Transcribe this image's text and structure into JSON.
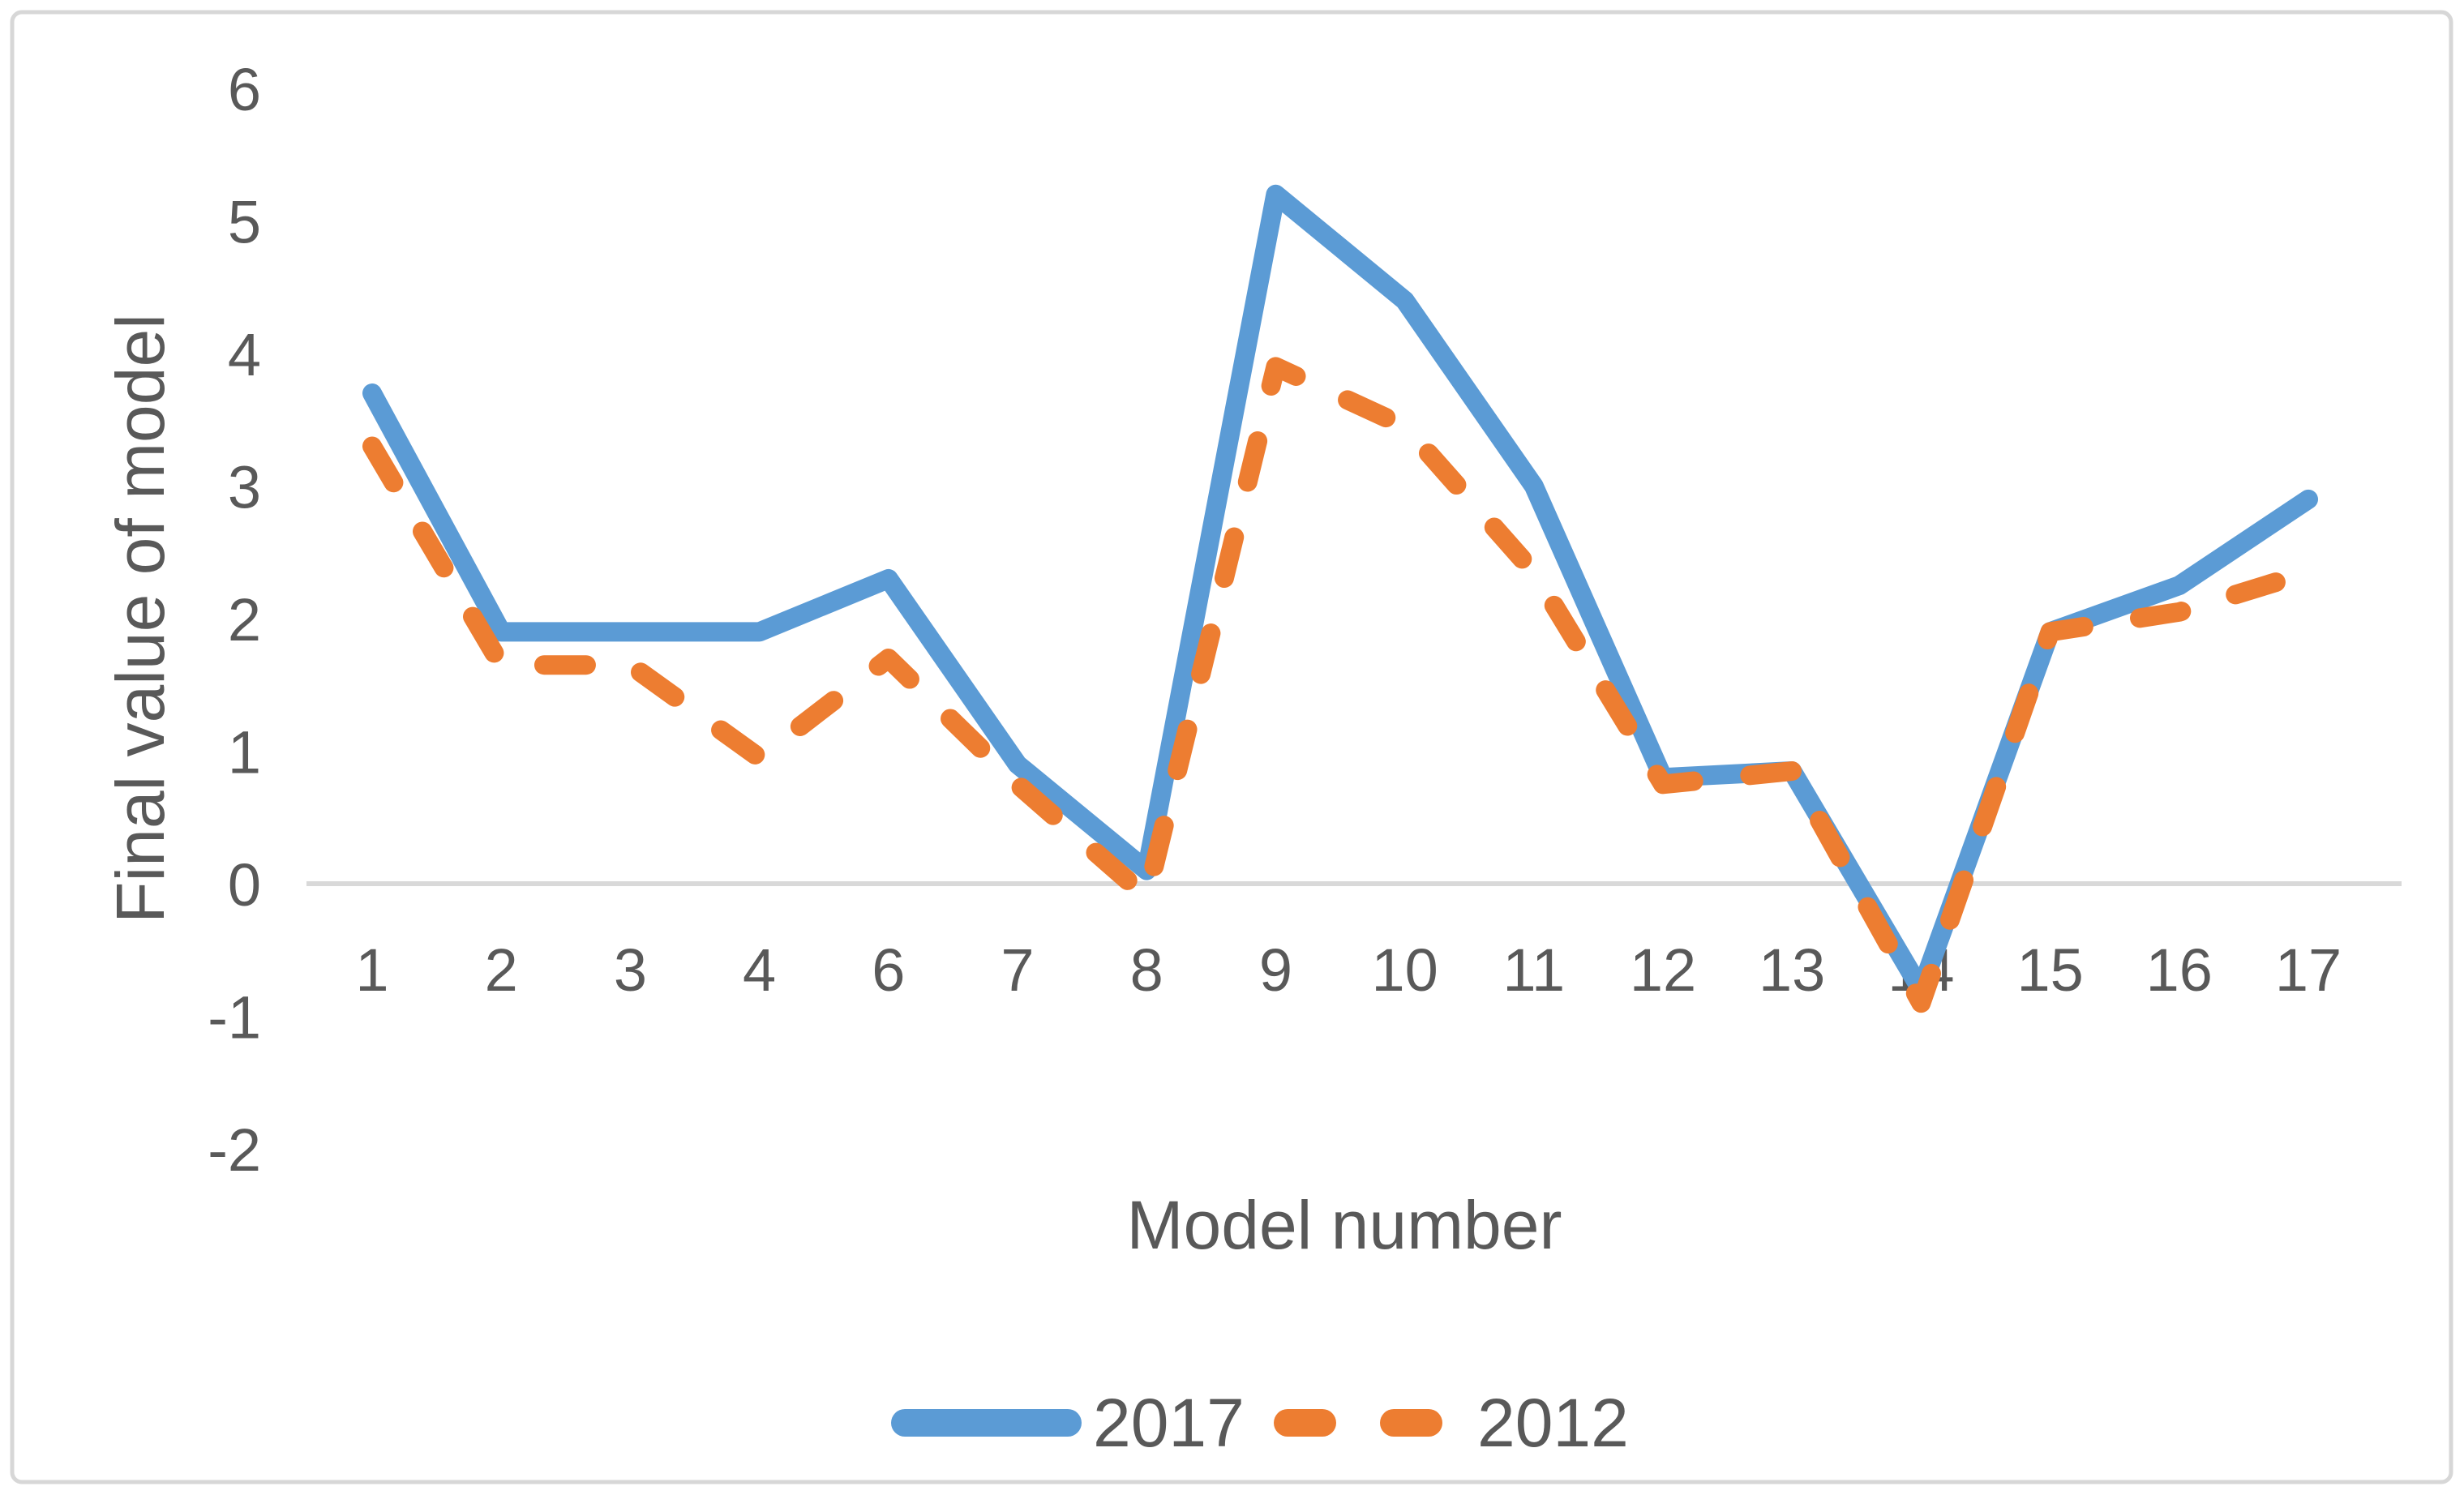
{
  "chart_data": {
    "type": "line",
    "title": "",
    "xlabel": "Model number",
    "ylabel": "Final value of model",
    "categories": [
      "1",
      "2",
      "3",
      "4",
      "6",
      "7",
      "8",
      "9",
      "10",
      "11",
      "12",
      "13",
      "14",
      "15",
      "16",
      "17"
    ],
    "y_ticks": [
      6,
      5,
      4,
      3,
      2,
      1,
      0,
      -1,
      -2
    ],
    "ylim": [
      -2,
      6
    ],
    "grid": "horizontal gridline at zero only",
    "legend_position": "bottom-center",
    "series": [
      {
        "name": "2017",
        "style": "solid",
        "color": "#5B9BD5",
        "values": [
          3.7,
          1.9,
          1.9,
          1.9,
          2.3,
          0.9,
          0.1,
          5.2,
          4.4,
          3.0,
          0.8,
          0.85,
          -0.8,
          1.9,
          2.25,
          2.9
        ]
      },
      {
        "name": "2012",
        "style": "dashed",
        "color": "#ED7D31",
        "values": [
          3.3,
          1.65,
          1.65,
          0.95,
          1.7,
          0.75,
          -0.1,
          3.9,
          3.45,
          2.35,
          0.75,
          0.85,
          -0.9,
          1.9,
          2.05,
          2.35
        ]
      }
    ],
    "colors": {
      "text": "#595959",
      "gridline": "#D9D9D9",
      "border": "#D7D7D7",
      "background": "#FFFFFF"
    }
  }
}
